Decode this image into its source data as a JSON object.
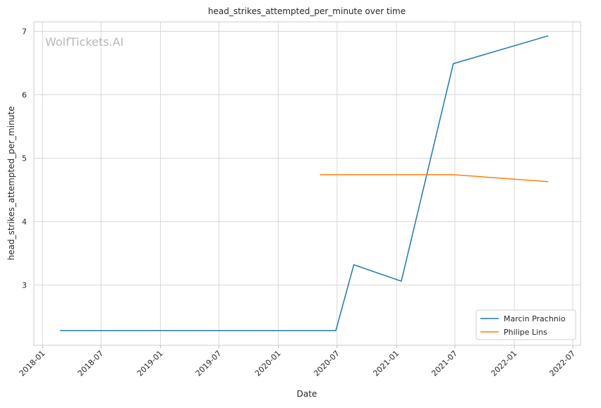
{
  "chart_data": {
    "type": "line",
    "title": "head_strikes_attempted_per_minute over time",
    "xlabel": "Date",
    "ylabel": "head_strikes_attempted_per_minute",
    "watermark": "WolfTickets.AI",
    "x_ticks": [
      "2018-01",
      "2018-07",
      "2019-01",
      "2019-07",
      "2020-01",
      "2020-07",
      "2021-01",
      "2021-07",
      "2022-01",
      "2022-07"
    ],
    "y_ticks": [
      3,
      4,
      5,
      6,
      7
    ],
    "xlim": [
      "2017-12-05",
      "2022-07-25"
    ],
    "ylim": [
      2.05,
      7.15
    ],
    "grid": true,
    "legend_position": "lower-right",
    "series": [
      {
        "name": "Marcin Prachnio",
        "color": "#1f77b4",
        "points": [
          {
            "x": "2018-02-24",
            "y": 2.28
          },
          {
            "x": "2020-06-27",
            "y": 2.28
          },
          {
            "x": "2020-08-22",
            "y": 3.32
          },
          {
            "x": "2021-01-16",
            "y": 3.06
          },
          {
            "x": "2021-06-26",
            "y": 6.49
          },
          {
            "x": "2022-04-16",
            "y": 6.93
          }
        ]
      },
      {
        "name": "Philipe Lins",
        "color": "#ff7f0e",
        "points": [
          {
            "x": "2020-05-09",
            "y": 4.74
          },
          {
            "x": "2021-06-26",
            "y": 4.74
          },
          {
            "x": "2022-04-16",
            "y": 4.63
          }
        ]
      }
    ]
  }
}
